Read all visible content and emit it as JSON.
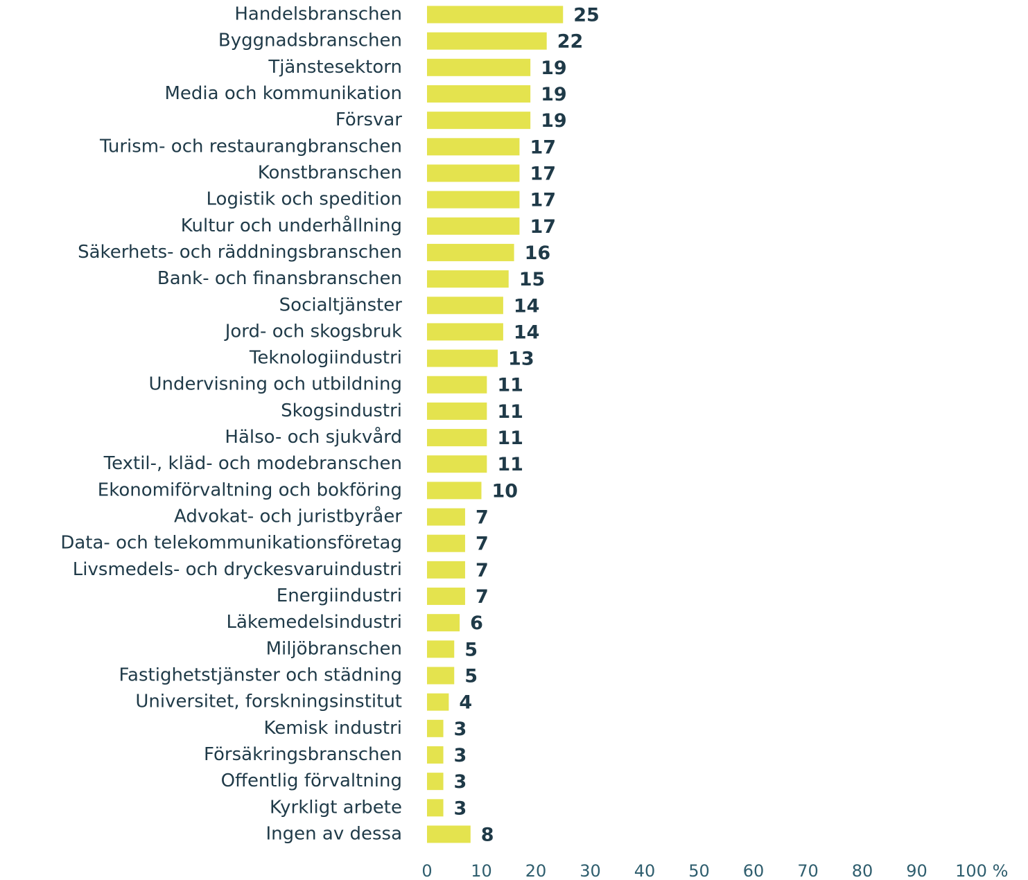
{
  "chart_data": {
    "type": "barh",
    "categories": [
      "Handelsbranschen",
      "Byggnadsbranschen",
      "Tjänstesektorn",
      "Media och kommunikation",
      "Försvar",
      "Turism- och restaurangbranschen",
      "Konstbranschen",
      "Logistik och spedition",
      "Kultur och underhållning",
      "Säkerhets- och räddningsbranschen",
      "Bank- och finansbranschen",
      "Socialtjänster",
      "Jord- och skogsbruk",
      "Teknologiindustri",
      "Undervisning och utbildning",
      "Skogsindustri",
      "Hälso- och sjukvård",
      "Textil-, kläd- och modebranschen",
      "Ekonomiförvaltning och bokföring",
      "Advokat- och juristbyråer",
      "Data- och telekommunikationsföretag",
      "Livsmedels- och dryckesvaruindustri",
      "Energiindustri",
      "Läkemedelsindustri",
      "Miljöbranschen",
      "Fastighetstjänster och städning",
      "Universitet, forskningsinstitut",
      "Kemisk industri",
      "Försäkringsbranschen",
      "Offentlig förvaltning",
      "Kyrkligt arbete",
      "Ingen av dessa"
    ],
    "values": [
      25,
      22,
      19,
      19,
      19,
      17,
      17,
      17,
      17,
      16,
      15,
      14,
      14,
      13,
      11,
      11,
      11,
      11,
      10,
      7,
      7,
      7,
      7,
      6,
      5,
      5,
      4,
      3,
      3,
      3,
      3,
      8
    ],
    "color": "#e4e34e",
    "xlim": [
      0,
      100
    ],
    "xticks": [
      0,
      10,
      20,
      30,
      40,
      50,
      60,
      70,
      80,
      90,
      100
    ],
    "xlabel": "%",
    "grid": false
  }
}
